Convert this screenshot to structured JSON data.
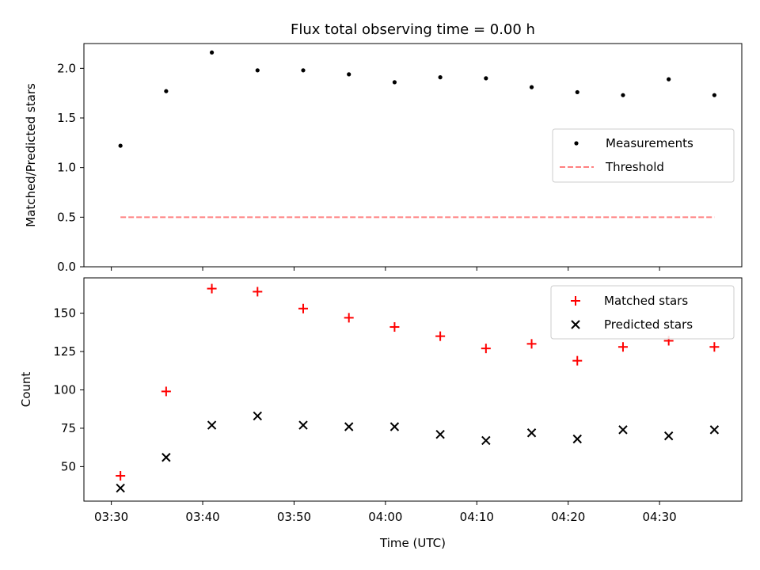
{
  "chart_data": [
    {
      "type": "scatter",
      "title": "Flux total observing time = 0.00 h",
      "xlabel": "",
      "ylabel": "Matched/Predicted stars",
      "ylim": [
        0,
        2.25
      ],
      "yticks": [
        0.0,
        0.5,
        1.0,
        1.5,
        2.0
      ],
      "ytick_labels": [
        "0.0",
        "0.5",
        "1.0",
        "1.5",
        "2.0"
      ],
      "x": [
        "03:31",
        "03:36",
        "03:41",
        "03:46",
        "03:51",
        "03:56",
        "04:01",
        "04:06",
        "04:11",
        "04:16",
        "04:21",
        "04:26",
        "04:31",
        "04:36"
      ],
      "series": [
        {
          "name": "Measurements",
          "marker": "dot",
          "color": "#000000",
          "values": [
            1.22,
            1.77,
            2.16,
            1.98,
            1.98,
            1.94,
            1.86,
            1.91,
            1.9,
            1.81,
            1.76,
            1.73,
            1.89,
            1.73
          ]
        },
        {
          "name": "Threshold",
          "marker": "dashed-line",
          "color": "#ff8080",
          "values": [
            0.5,
            0.5
          ]
        }
      ],
      "legend": "center-right",
      "grid": false
    },
    {
      "type": "scatter",
      "xlabel": "Time (UTC)",
      "ylabel": "Count",
      "xlim": [
        "03:27",
        "04:39"
      ],
      "ylim": [
        27.5,
        173
      ],
      "yticks": [
        50,
        75,
        100,
        125,
        150
      ],
      "ytick_labels": [
        "50",
        "75",
        "100",
        "125",
        "150"
      ],
      "xticks": [
        "03:30",
        "03:40",
        "03:50",
        "04:00",
        "04:10",
        "04:20",
        "04:30"
      ],
      "xtick_labels": [
        "03:30",
        "03:40",
        "03:50",
        "04:00",
        "04:10",
        "04:20",
        "04:30"
      ],
      "x": [
        "03:31",
        "03:36",
        "03:41",
        "03:46",
        "03:51",
        "03:56",
        "04:01",
        "04:06",
        "04:11",
        "04:16",
        "04:21",
        "04:26",
        "04:31",
        "04:36"
      ],
      "series": [
        {
          "name": "Matched stars",
          "marker": "plus",
          "color": "#ff0000",
          "values": [
            44,
            99,
            166,
            164,
            153,
            147,
            141,
            135,
            127,
            130,
            119,
            128,
            132,
            128
          ]
        },
        {
          "name": "Predicted stars",
          "marker": "x",
          "color": "#000000",
          "values": [
            36,
            56,
            77,
            83,
            77,
            76,
            76,
            71,
            67,
            72,
            68,
            74,
            70,
            74
          ]
        }
      ],
      "legend": "top-right",
      "grid": false
    }
  ]
}
